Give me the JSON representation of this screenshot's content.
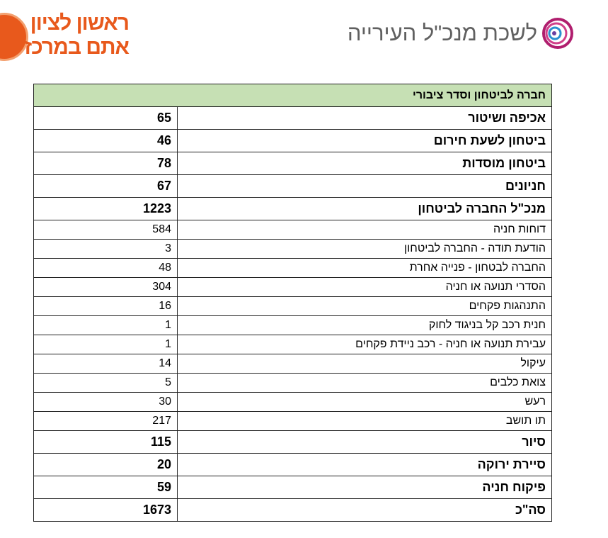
{
  "header": {
    "left_logo": [
      "ראשון לציון",
      "אתם במרכז"
    ],
    "right_logo": "לשכת מנכ\"ל העירייה"
  },
  "table": {
    "title": "חברה לביטחון וסדר ציבורי",
    "rows": [
      {
        "label": "אכיפה ושיטור",
        "value": 65,
        "bold": true
      },
      {
        "label": "ביטחון לשעת חירום",
        "value": 46,
        "bold": true
      },
      {
        "label": "ביטחון מוסדות",
        "value": 78,
        "bold": true
      },
      {
        "label": "חניונים",
        "value": 67,
        "bold": true
      },
      {
        "label": "מנכ\"ל החברה לביטחון",
        "value": 1223,
        "bold": true
      },
      {
        "label": "דוחות חניה",
        "value": 584,
        "bold": false
      },
      {
        "label": "הודעת תודה - החברה לביטחון",
        "value": 3,
        "bold": false
      },
      {
        "label": "החברה לבטחון - פנייה אחרת",
        "value": 48,
        "bold": false
      },
      {
        "label": "הסדרי תנועה או חניה",
        "value": 304,
        "bold": false
      },
      {
        "label": "התנהגות פקחים",
        "value": 16,
        "bold": false
      },
      {
        "label": "חנית רכב קל בניגוד לחוק",
        "value": 1,
        "bold": false
      },
      {
        "label": "עבירת תנועה או חניה - רכב ניידת פקחים",
        "value": 1,
        "bold": false
      },
      {
        "label": "עיקול",
        "value": 14,
        "bold": false
      },
      {
        "label": "צואת כלבים",
        "value": 5,
        "bold": false
      },
      {
        "label": "רעש",
        "value": 30,
        "bold": false
      },
      {
        "label": "תו תושב",
        "value": 217,
        "bold": false
      },
      {
        "label": "סיור",
        "value": 115,
        "bold": true
      },
      {
        "label": "סיירת ירוקה",
        "value": 20,
        "bold": true
      },
      {
        "label": "פיקוח חניה",
        "value": 59,
        "bold": true
      },
      {
        "label": "סה\"כ",
        "value": 1673,
        "bold": true
      }
    ]
  }
}
